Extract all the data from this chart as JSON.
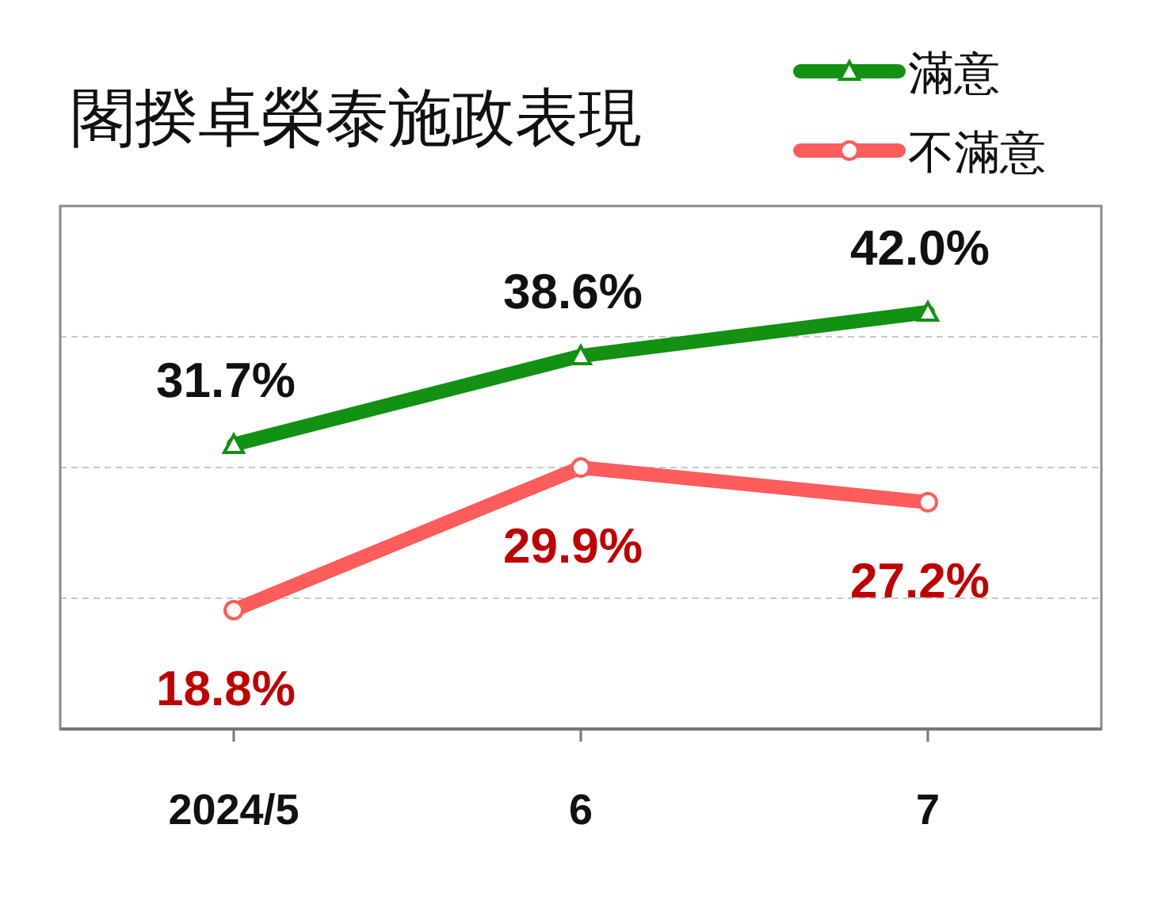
{
  "chart_data": {
    "type": "line",
    "title": "閣揆卓榮泰施政表現",
    "categories": [
      "2024/5",
      "6",
      "7"
    ],
    "series": [
      {
        "name": "滿意",
        "color": "#129112",
        "values": [
          31.7,
          38.6,
          42.0
        ],
        "value_labels": [
          "31.7%",
          "38.6%",
          "42.0%"
        ],
        "marker": "triangle"
      },
      {
        "name": "不滿意",
        "color": "#ff5c5c",
        "values": [
          18.8,
          29.9,
          27.2
        ],
        "value_labels": [
          "18.8%",
          "29.9%",
          "27.2%"
        ],
        "marker": "circle"
      }
    ],
    "grid": "y",
    "legend": "top right",
    "tick_labels": "x"
  }
}
